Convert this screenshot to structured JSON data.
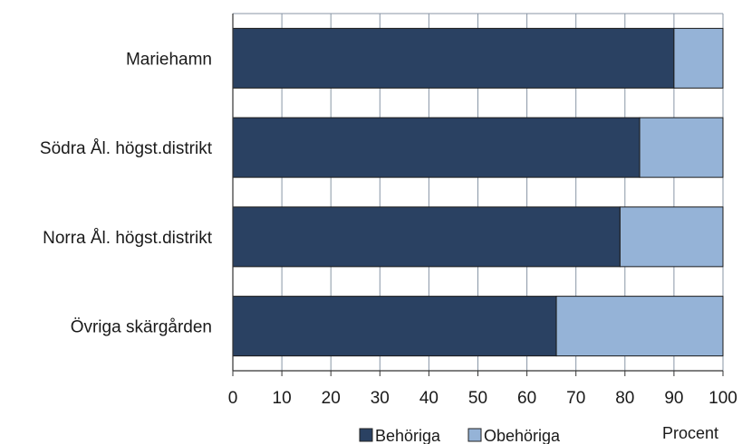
{
  "chart_data": {
    "type": "bar",
    "orientation": "horizontal",
    "stacked": true,
    "categories": [
      "Mariehamn",
      "Södra Ål. högst.distrikt",
      "Norra Ål. högst.distrikt",
      "Övriga skärgården"
    ],
    "series": [
      {
        "name": "Behöriga",
        "values": [
          90,
          83,
          79,
          66
        ]
      },
      {
        "name": "Obehöriga",
        "values": [
          10,
          17,
          21,
          34
        ]
      }
    ],
    "xlim": [
      0,
      100
    ],
    "xticks": [
      "0",
      "10",
      "20",
      "30",
      "40",
      "50",
      "60",
      "70",
      "80",
      "90",
      "100"
    ],
    "xlabel": "Procent",
    "grid": true,
    "legend_position": "bottom",
    "colors": {
      "Behöriga": "#2a4162",
      "Obehöriga": "#95b3d7",
      "grid": "#8896a6",
      "axis": "#333333"
    }
  }
}
